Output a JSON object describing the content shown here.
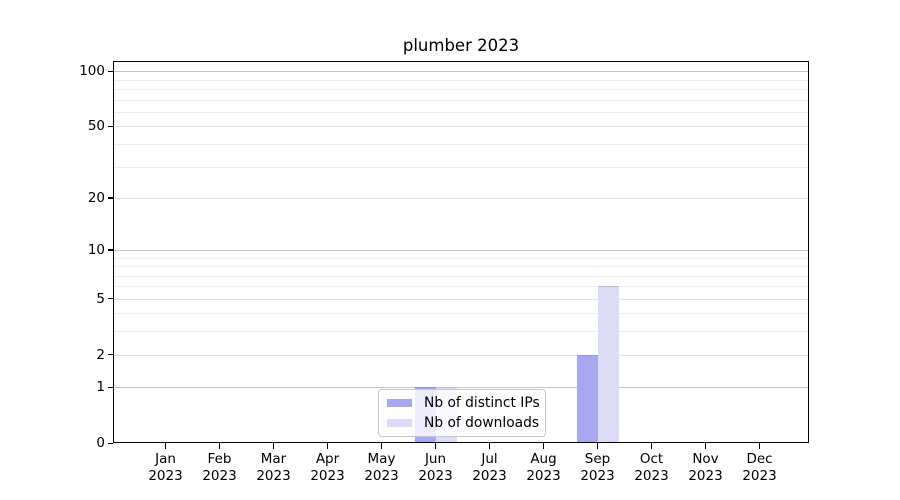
{
  "chart_data": {
    "type": "bar",
    "title": "plumber 2023",
    "categories": [
      "Jan 2023",
      "Feb 2023",
      "Mar 2023",
      "Apr 2023",
      "May 2023",
      "Jun 2023",
      "Jul 2023",
      "Aug 2023",
      "Sep 2023",
      "Oct 2023",
      "Nov 2023",
      "Dec 2023"
    ],
    "series": [
      {
        "name": "Nb of distinct IPs",
        "color": "#a7a7f2",
        "values": [
          0,
          0,
          0,
          0,
          0,
          1,
          0,
          0,
          2,
          0,
          0,
          0
        ]
      },
      {
        "name": "Nb of downloads",
        "color": "#dcdcf8",
        "values": [
          0,
          0,
          0,
          0,
          0,
          1,
          0,
          0,
          6,
          0,
          0,
          0
        ]
      }
    ],
    "xlabel": "",
    "ylabel": "",
    "yscale": "log1p",
    "yticks": [
      0,
      1,
      2,
      5,
      10,
      20,
      50,
      100
    ],
    "ylim": [
      0,
      114
    ],
    "grid": true,
    "legend_position": "lower center"
  }
}
